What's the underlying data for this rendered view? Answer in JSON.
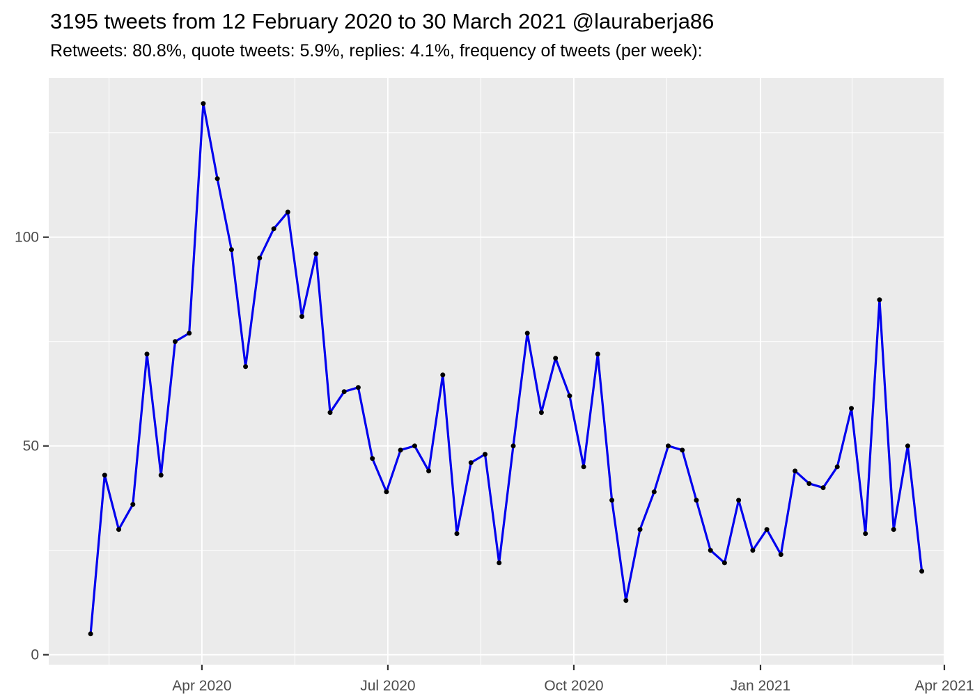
{
  "header": {
    "title": "3195 tweets from 12 February 2020 to 30 March 2021 @lauraberja86",
    "subtitle": "Retweets: 80.8%, quote tweets: 5.9%, replies: 4.1%, frequency of tweets (per week):"
  },
  "stats": {
    "total_tweets": 3195,
    "account": "@lauraberja86",
    "date_range": "12 February 2020 to 30 March 2021",
    "retweets_pct": "80.8%",
    "quote_tweets_pct": "5.9%",
    "replies_pct": "4.1%"
  },
  "chart_data": {
    "type": "line",
    "series_name": "frequency of tweets (per week)",
    "weeks": [
      "2020-02-09",
      "2020-02-16",
      "2020-02-23",
      "2020-03-01",
      "2020-03-08",
      "2020-03-15",
      "2020-03-22",
      "2020-03-29",
      "2020-04-05",
      "2020-04-12",
      "2020-04-19",
      "2020-04-26",
      "2020-05-03",
      "2020-05-10",
      "2020-05-17",
      "2020-05-24",
      "2020-05-31",
      "2020-06-07",
      "2020-06-14",
      "2020-06-21",
      "2020-06-28",
      "2020-07-05",
      "2020-07-12",
      "2020-07-19",
      "2020-07-26",
      "2020-08-02",
      "2020-08-09",
      "2020-08-16",
      "2020-08-23",
      "2020-08-30",
      "2020-09-06",
      "2020-09-13",
      "2020-09-20",
      "2020-09-27",
      "2020-10-04",
      "2020-10-11",
      "2020-10-18",
      "2020-10-25",
      "2020-11-01",
      "2020-11-08",
      "2020-11-15",
      "2020-11-22",
      "2020-11-29",
      "2020-12-06",
      "2020-12-13",
      "2020-12-20",
      "2020-12-27",
      "2021-01-03",
      "2021-01-10",
      "2021-01-17",
      "2021-01-24",
      "2021-01-31",
      "2021-02-07",
      "2021-02-14",
      "2021-02-21",
      "2021-02-28",
      "2021-03-07",
      "2021-03-14",
      "2021-03-21",
      "2021-03-28"
    ],
    "values": [
      5,
      43,
      30,
      36,
      72,
      43,
      75,
      77,
      132,
      114,
      97,
      69,
      95,
      102,
      106,
      81,
      96,
      58,
      63,
      64,
      47,
      39,
      49,
      50,
      44,
      67,
      29,
      46,
      48,
      22,
      50,
      77,
      58,
      71,
      62,
      45,
      72,
      37,
      13,
      30,
      39,
      50,
      49,
      37,
      25,
      22,
      37,
      25,
      30,
      24,
      44,
      41,
      40,
      45,
      59,
      29,
      85,
      30,
      50,
      20
    ],
    "values_sum": 3195,
    "x_axis": {
      "lim": [
        -2.97,
        60.65
      ],
      "ticks": [
        {
          "label": "Apr 2020",
          "pos": 7.9
        },
        {
          "label": "Jul 2020",
          "pos": 21.1
        },
        {
          "label": "Oct 2020",
          "pos": 34.3
        },
        {
          "label": "Jan 2021",
          "pos": 47.55
        },
        {
          "label": "Apr 2021",
          "pos": 60.6
        }
      ],
      "minor_ticks": [
        1.31,
        14.5,
        27.7,
        40.9,
        54.05
      ]
    },
    "y_axis": {
      "lim": [
        -2.38,
        138.12
      ],
      "ticks": [
        {
          "label": "0",
          "value": 0
        },
        {
          "label": "50",
          "value": 50
        },
        {
          "label": "100",
          "value": 100
        }
      ],
      "minor_ticks": [
        25,
        75,
        125
      ]
    },
    "grid": true,
    "legend": "none",
    "colors": {
      "line": "#0000ee",
      "point": "#000000",
      "panel_bg": "#ebebeb",
      "grid": "#ffffff",
      "axis_text": "#4d4d4d",
      "tick_mark": "#333333",
      "title_text": "#000000"
    }
  }
}
